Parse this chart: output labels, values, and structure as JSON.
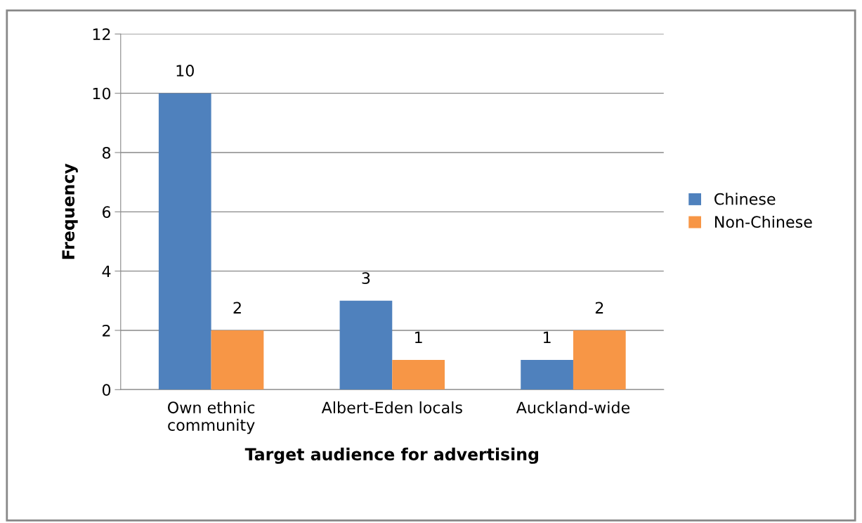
{
  "chart_data": {
    "type": "bar",
    "xlabel": "Target audience for advertising",
    "ylabel": "Frequency",
    "categories": [
      "Own ethnic\ncommunity",
      "Albert-Eden locals",
      "Auckland-wide"
    ],
    "series": [
      {
        "name": "Chinese",
        "color": "#4f81bd",
        "values": [
          10,
          3,
          1
        ]
      },
      {
        "name": "Non-Chinese",
        "color": "#f79646",
        "values": [
          2,
          1,
          2
        ]
      }
    ],
    "ylim": [
      0,
      12
    ],
    "yticks": [
      0,
      2,
      4,
      6,
      8,
      10,
      12
    ],
    "grid": "y",
    "legend": "right",
    "data_labels": true
  }
}
